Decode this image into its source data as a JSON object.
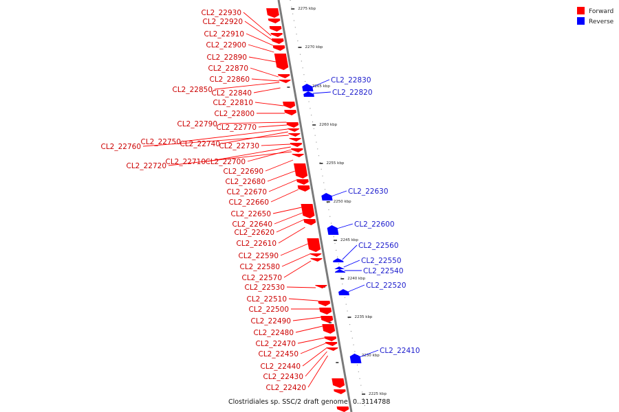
{
  "legend": {
    "items": [
      {
        "label": "Forward",
        "color": "#ff0000"
      },
      {
        "label": "Reverse",
        "color": "#0000ff"
      }
    ]
  },
  "title": "Clostridiales sp. SSC/2 draft genome",
  "range_label": "0..3114788",
  "colors": {
    "forward": "#ff0000",
    "reverse": "#0000ff",
    "axis": "#888888"
  },
  "tick_labels": [
    "2275 kbp",
    "2270 kbp",
    "2265 kbp",
    "2260 kbp",
    "2255 kbp",
    "2250 kbp",
    "2245 kbp",
    "2240 kbp",
    "2235 kbp",
    "2230 kbp",
    "2225 kbp"
  ],
  "forward_genes": [
    "CL2_22930",
    "CL2_22920",
    "CL2_22910",
    "CL2_22900",
    "CL2_22890",
    "CL2_22870",
    "CL2_22860",
    "CL2_22850",
    "CL2_22840",
    "CL2_22810",
    "CL2_22800",
    "CL2_22790",
    "CL2_22770",
    "CL2_22750",
    "CL2_22740",
    "CL2_22760",
    "CL2_22730",
    "CL2_22710",
    "CL2_22700",
    "CL2_22720",
    "CL2_22690",
    "CL2_22680",
    "CL2_22670",
    "CL2_22660",
    "CL2_22650",
    "CL2_22640",
    "CL2_22620",
    "CL2_22610",
    "CL2_22590",
    "CL2_22580",
    "CL2_22570",
    "CL2_22530",
    "CL2_22510",
    "CL2_22500",
    "CL2_22490",
    "CL2_22480",
    "CL2_22470",
    "CL2_22450",
    "CL2_22440",
    "CL2_22430",
    "CL2_22420"
  ],
  "reverse_genes": [
    "CL2_22830",
    "CL2_22820",
    "CL2_22630",
    "CL2_22600",
    "CL2_22560",
    "CL2_22550",
    "CL2_22540",
    "CL2_22520",
    "CL2_22410"
  ]
}
